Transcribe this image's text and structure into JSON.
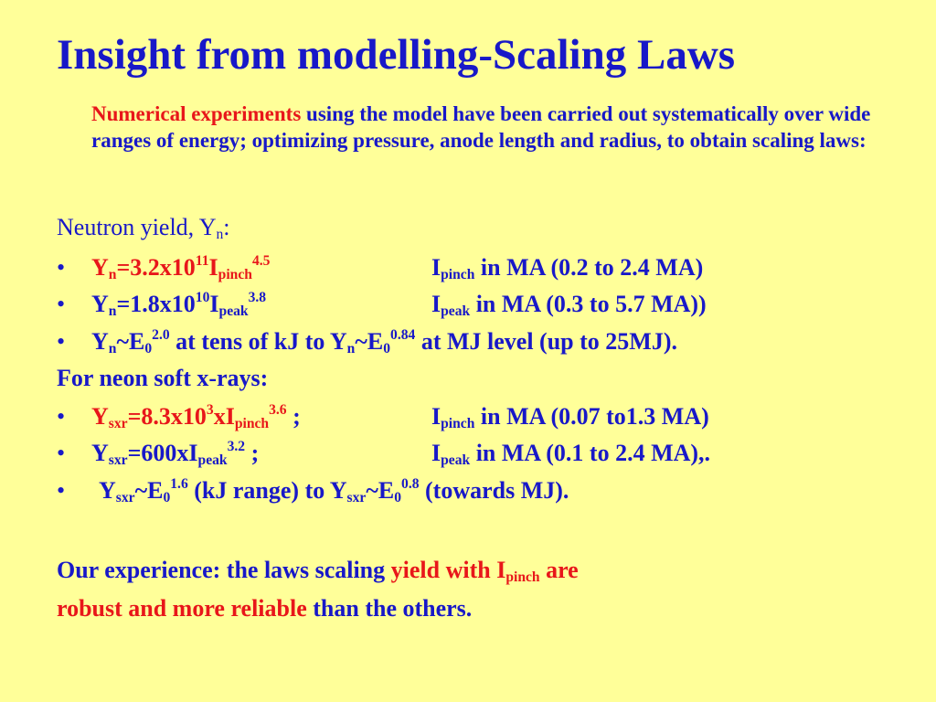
{
  "title": "Insight from modelling-Scaling Laws",
  "intro": {
    "highlight": "Numerical experiments",
    "rest": " using the model have been carried out systematically over wide ranges of energy; optimizing pressure, anode length and radius, to obtain scaling laws:"
  },
  "neutron_heading": "Neutron yield, Y",
  "neutron_heading_sub": "n",
  "neutron_heading_end": ":",
  "bullet_glyph": "•",
  "n1": {
    "a": "Y",
    "a_sub": "n",
    "b": "=3.2x10",
    "b_sup": "11",
    "c": "I",
    "c_sub": "pinch",
    "c_sup": "4.5",
    "u": "I",
    "u_sub": "pinch",
    "u_text": " in MA (0.2 to 2.4  MA)"
  },
  "n2": {
    "a": "Y",
    "a_sub": "n",
    "b": "=1.8x10",
    "b_sup": "10",
    "c": "I",
    "c_sub": "peak",
    "c_sup": "3.8",
    "u": "I",
    "u_sub": "peak",
    "u_text": " in MA  (0.3 to 5.7 MA))"
  },
  "n3": {
    "a": "Y",
    "a_sub": "n",
    "b": "~E",
    "b_sub": "0",
    "b_sup": "2.0",
    "c": " at tens of kJ to Y",
    "c_sub": "n",
    "d": "~E",
    "d_sub": "0",
    "d_sup": "0.84",
    "e": " at MJ level (up to 25MJ)."
  },
  "neon_heading": "For neon soft x-rays:",
  "x1": {
    "a": "Y",
    "a_sub": "sxr",
    "b": "=8.3x10",
    "b_sup": "3",
    "c": "xI",
    "c_sub": "pinch",
    "c_sup": "3.6",
    "d": " ;",
    "u": "I",
    "u_sub": "pinch",
    "u_text": " in MA (0.07 to1.3 MA)"
  },
  "x2": {
    "a": "Y",
    "a_sub": "sxr",
    "b": "=600xI",
    "b_sub": "peak",
    "b_sup": "3.2",
    "c": " ;",
    "u": "I",
    "u_sub": "peak",
    "u_text": " in MA (0.1 to 2.4 MA),."
  },
  "x3": {
    "a": "Y",
    "a_sub": "sxr",
    "b": "~E",
    "b_sub": "0",
    "b_sup": "1.6",
    "c": " (kJ range)  to  Y",
    "c_sub": "sxr",
    "d": "~E",
    "d_sub": "0",
    "d_sup": "0.8",
    "e": " (towards MJ)."
  },
  "footer": {
    "p1": "Our experience: the laws scaling ",
    "p2": "yield with I",
    "p2_sub": "pinch",
    "p3": " are",
    "p4": "robust and more reliable",
    "p5": " than the others."
  },
  "colors": {
    "background": "#FFFF99",
    "text": "#1818C8",
    "accent": "#E8161A"
  }
}
